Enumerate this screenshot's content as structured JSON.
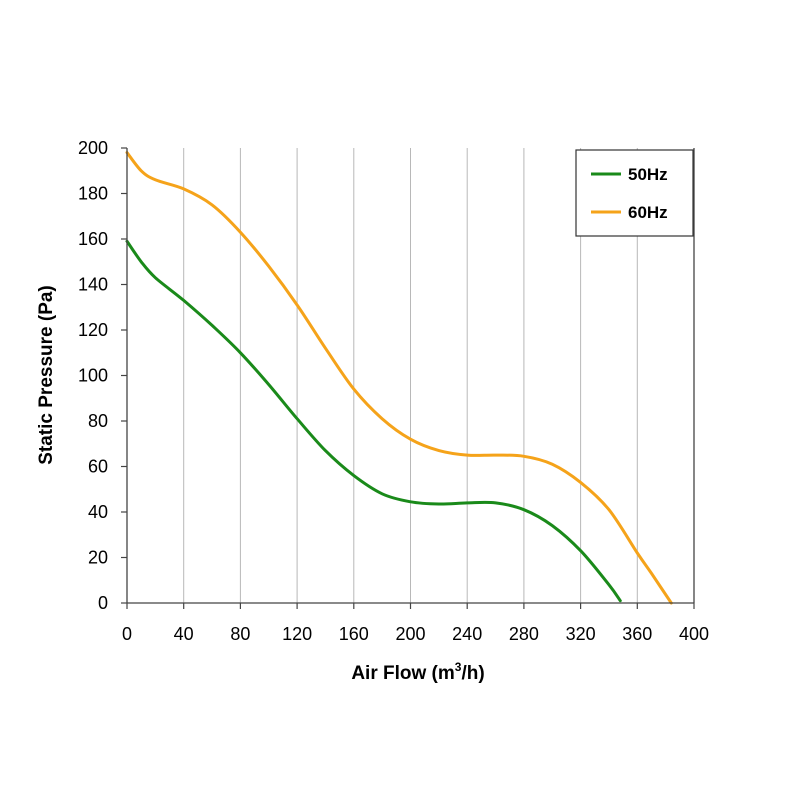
{
  "chart_data": {
    "type": "line",
    "xlabel": "Air Flow (m3/h)",
    "xlabel_parts": {
      "before": "Air Flow (m",
      "sup": "3",
      "after": "/h)"
    },
    "ylabel": "Static Pressure (Pa)",
    "xlim": [
      0,
      400
    ],
    "ylim": [
      0,
      200
    ],
    "xticks": [
      "0",
      "40",
      "80",
      "120",
      "160",
      "200",
      "240",
      "280",
      "320",
      "360",
      "400"
    ],
    "yticks": [
      "0",
      "20",
      "40",
      "60",
      "80",
      "100",
      "120",
      "140",
      "160",
      "180",
      "200"
    ],
    "grid": {
      "vertical": true,
      "horizontal": false
    },
    "legend": "top-right",
    "series": [
      {
        "name": "50Hz",
        "color": "#1a8a1a",
        "points": [
          [
            0,
            159
          ],
          [
            10,
            150
          ],
          [
            20,
            143
          ],
          [
            40,
            133
          ],
          [
            60,
            122
          ],
          [
            80,
            110
          ],
          [
            100,
            96
          ],
          [
            120,
            81
          ],
          [
            140,
            67
          ],
          [
            160,
            56
          ],
          [
            180,
            48
          ],
          [
            200,
            44.5
          ],
          [
            220,
            43.5
          ],
          [
            240,
            44
          ],
          [
            260,
            44
          ],
          [
            280,
            41
          ],
          [
            300,
            34
          ],
          [
            320,
            23
          ],
          [
            340,
            8
          ],
          [
            348,
            1
          ]
        ]
      },
      {
        "name": "60Hz",
        "color": "#f5a31a",
        "points": [
          [
            0,
            198
          ],
          [
            10,
            190
          ],
          [
            20,
            186
          ],
          [
            40,
            182
          ],
          [
            60,
            175
          ],
          [
            80,
            163
          ],
          [
            100,
            148
          ],
          [
            120,
            131
          ],
          [
            140,
            112
          ],
          [
            160,
            94
          ],
          [
            180,
            81
          ],
          [
            200,
            72
          ],
          [
            220,
            67
          ],
          [
            240,
            65
          ],
          [
            260,
            65
          ],
          [
            280,
            64.5
          ],
          [
            300,
            61
          ],
          [
            320,
            53
          ],
          [
            340,
            41
          ],
          [
            360,
            22
          ],
          [
            370,
            13
          ],
          [
            384,
            0
          ]
        ]
      }
    ]
  }
}
